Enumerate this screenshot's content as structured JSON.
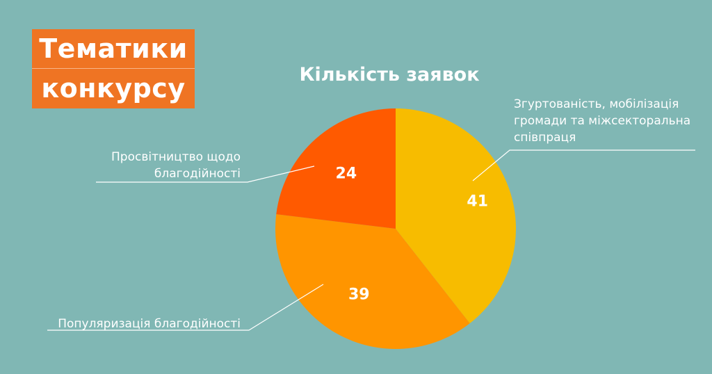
{
  "header": {
    "title_line1": "Тематики",
    "title_line2": "конкурсу"
  },
  "colors": {
    "background": "#80b7b4",
    "badge": "#ef7423"
  },
  "chart_data": {
    "type": "pie",
    "title": "Кількість заявок",
    "slices": [
      {
        "label_lines": [
          "Згуртованість, мобілізація",
          "громади та міжсекторальна",
          "співпраця"
        ],
        "value": 41,
        "color": "#f7bc00"
      },
      {
        "label_lines": [
          "Популяризація благодійності"
        ],
        "value": 39,
        "color": "#ff9500"
      },
      {
        "label_lines": [
          "Просвітництво щодо",
          "благодійності"
        ],
        "value": 24,
        "color": "#ff5a00"
      }
    ],
    "legend": "none"
  }
}
